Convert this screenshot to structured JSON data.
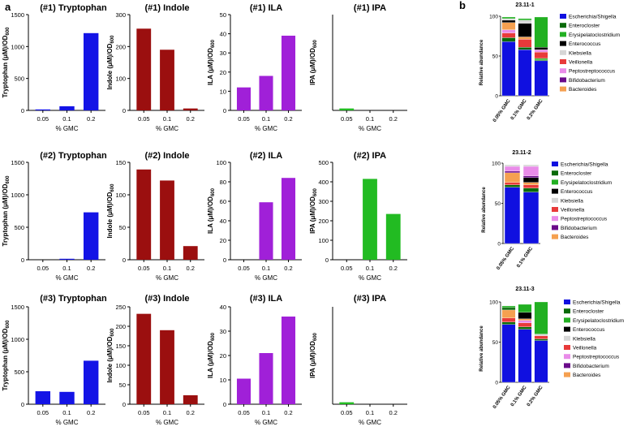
{
  "figure": {
    "panel_labels": [
      "a",
      "b"
    ]
  },
  "colors": {
    "tryptophan": "#1414e6",
    "indole": "#9b0f0f",
    "ila": "#a020d8",
    "ipa": "#22bb22",
    "Escherichia/Shigella": "#1010e0",
    "Enterocloster": "#0a6a0a",
    "Erysipelatoclostridium": "#22b022",
    "Enterococcus": "#000000",
    "Klebsiella": "#d6d6d6",
    "Veillonella": "#e83a3a",
    "Peptostreptococcus": "#e98ce9",
    "Bifidobacterium": "#6a0a8a",
    "Bacteroides": "#f5a050"
  },
  "chart_data": [
    {
      "type": "bar",
      "panel": "a",
      "title": "(#1) Tryptophan",
      "series_key": "tryptophan",
      "categories": [
        "0.05",
        "0.1",
        "0.2"
      ],
      "values": [
        3,
        65,
        1210
      ],
      "ylim": [
        0,
        1500
      ],
      "yticks": [
        0,
        500,
        1000,
        1500
      ],
      "xlabel": "% GMC",
      "ylabel_main": "Tryptophan (μM)/OD",
      "ylabel_sub": "600"
    },
    {
      "type": "bar",
      "panel": "a",
      "title": "(#1) Indole",
      "series_key": "indole",
      "categories": [
        "0.05",
        "0.1",
        "0.2"
      ],
      "values": [
        256,
        190,
        6
      ],
      "ylim": [
        0,
        300
      ],
      "yticks": [
        0,
        100,
        200,
        300
      ],
      "xlabel": "% GMC",
      "ylabel_main": "Indole (μM)/OD",
      "ylabel_sub": "600"
    },
    {
      "type": "bar",
      "panel": "a",
      "title": "(#1) ILA",
      "series_key": "ila",
      "categories": [
        "0.05",
        "0.1",
        "0.2"
      ],
      "values": [
        12,
        18,
        39
      ],
      "ylim": [
        0,
        50
      ],
      "yticks": [
        0,
        10,
        20,
        30,
        40,
        50
      ],
      "xlabel": "% GMC",
      "ylabel_main": "ILA (μM)/OD",
      "ylabel_sub": "600"
    },
    {
      "type": "bar",
      "panel": "a",
      "title": "(#1) IPA",
      "series_key": "ipa",
      "categories": [
        "0.05",
        "0.1",
        "0.2"
      ],
      "values": [
        0.02,
        0,
        0
      ],
      "ylim": [
        0,
        1
      ],
      "yticks": [],
      "xlabel": "% GMC",
      "ylabel_main": "IPA (μM)/OD",
      "ylabel_sub": "600"
    },
    {
      "type": "bar",
      "panel": "a",
      "title": "(#2) Tryptophan",
      "series_key": "tryptophan",
      "categories": [
        "0.05",
        "0.1",
        "0.2"
      ],
      "values": [
        0,
        5,
        730
      ],
      "ylim": [
        0,
        1500
      ],
      "yticks": [
        0,
        500,
        1000,
        1500
      ],
      "xlabel": "% GMC",
      "ylabel_main": "Tryptophan (μM)/OD",
      "ylabel_sub": "600"
    },
    {
      "type": "bar",
      "panel": "a",
      "title": "(#2) Indole",
      "series_key": "indole",
      "categories": [
        "0.05",
        "0.1",
        "0.2"
      ],
      "values": [
        139,
        122,
        21
      ],
      "ylim": [
        0,
        150
      ],
      "yticks": [
        0,
        50,
        100,
        150
      ],
      "xlabel": "% GMC",
      "ylabel_main": "Indole (μM)/OD",
      "ylabel_sub": "600"
    },
    {
      "type": "bar",
      "panel": "a",
      "title": "(#2) ILA",
      "series_key": "ila",
      "categories": [
        "0.05",
        "0.1",
        "0.2"
      ],
      "values": [
        0,
        59,
        84
      ],
      "ylim": [
        0,
        100
      ],
      "yticks": [
        0,
        20,
        40,
        60,
        80,
        100
      ],
      "xlabel": "% GMC",
      "ylabel_main": "ILA (μM)/OD",
      "ylabel_sub": "600"
    },
    {
      "type": "bar",
      "panel": "a",
      "title": "(#2) IPA",
      "series_key": "ipa",
      "categories": [
        "0.05",
        "0.1",
        "0.2"
      ],
      "values": [
        0,
        415,
        235
      ],
      "ylim": [
        0,
        500
      ],
      "yticks": [
        0,
        100,
        200,
        300,
        400,
        500
      ],
      "xlabel": "% GMC",
      "ylabel_main": "IPA (μM)/OD",
      "ylabel_sub": "600"
    },
    {
      "type": "bar",
      "panel": "a",
      "title": "(#3) Tryptophan",
      "series_key": "tryptophan",
      "categories": [
        "0.05",
        "0.1",
        "0.2"
      ],
      "values": [
        200,
        190,
        670
      ],
      "ylim": [
        0,
        1500
      ],
      "yticks": [
        0,
        500,
        1000,
        1500
      ],
      "xlabel": "% GMC",
      "ylabel_main": "Tryptophan (μM)/OD",
      "ylabel_sub": "600"
    },
    {
      "type": "bar",
      "panel": "a",
      "title": "(#3) Indole",
      "series_key": "indole",
      "categories": [
        "0.05",
        "0.1",
        "0.2"
      ],
      "values": [
        232,
        190,
        23
      ],
      "ylim": [
        0,
        250
      ],
      "yticks": [
        0,
        50,
        100,
        150,
        200,
        250
      ],
      "xlabel": "% GMC",
      "ylabel_main": "Indole (μM)/OD",
      "ylabel_sub": "600"
    },
    {
      "type": "bar",
      "panel": "a",
      "title": "(#3) ILA",
      "series_key": "ila",
      "categories": [
        "0.05",
        "0.1",
        "0.2"
      ],
      "values": [
        10.5,
        21,
        36
      ],
      "ylim": [
        0,
        40
      ],
      "yticks": [
        0,
        10,
        20,
        30,
        40
      ],
      "xlabel": "% GMC",
      "ylabel_main": "ILA (μM)/OD",
      "ylabel_sub": "600"
    },
    {
      "type": "bar",
      "panel": "a",
      "title": "(#3) IPA",
      "series_key": "ipa",
      "categories": [
        "0.05",
        "0.1",
        "0.2"
      ],
      "values": [
        0.02,
        0,
        0
      ],
      "ylim": [
        0,
        1
      ],
      "yticks": [],
      "xlabel": "% GMC",
      "ylabel_main": "IPA (μM)/OD",
      "ylabel_sub": "600"
    },
    {
      "type": "stacked_bar",
      "panel": "b",
      "title": "23.11-1",
      "categories": [
        "0.05% GMC",
        "0.1% GMC",
        "0.2% GMC"
      ],
      "ylabel": "Relative abundance",
      "ylim": [
        0,
        100
      ],
      "yticks": [
        0,
        50,
        100
      ],
      "legend": [
        "Escherichia/Shigella",
        "Enterocloster",
        "Erysipelatoclostridium",
        "Enterococcus",
        "Klebsiella",
        "Veillonella",
        "Peptostreptococcus",
        "Bifidobacterium",
        "Bacteroides"
      ],
      "series": [
        {
          "name": "Escherichia/Shigella",
          "values": [
            68,
            58,
            44
          ]
        },
        {
          "name": "Enterocloster",
          "values": [
            5,
            3,
            1
          ]
        },
        {
          "name": "Erysipelatoclostridium",
          "values": [
            0,
            0,
            2
          ]
        },
        {
          "name": "Enterococcus",
          "values": [
            0,
            0,
            0
          ]
        },
        {
          "name": "Klebsiella",
          "values": [
            0,
            0,
            0
          ]
        },
        {
          "name": "Veillonella",
          "values": [
            6,
            10,
            8
          ]
        },
        {
          "name": "Peptostreptococcus",
          "values": [
            4,
            0,
            3
          ]
        },
        {
          "name": "Bifidobacterium",
          "values": [
            0,
            0,
            0
          ]
        },
        {
          "name": "Bacteroides",
          "values": [
            9,
            3,
            0
          ]
        },
        {
          "name": "Enterococcus",
          "values": [
            3,
            17,
            3
          ]
        },
        {
          "name": "Klebsiella",
          "values": [
            2,
            4,
            0
          ]
        },
        {
          "name": "Erysipelatoclostridium",
          "values": [
            2,
            2,
            38
          ]
        }
      ]
    },
    {
      "type": "stacked_bar",
      "panel": "b",
      "title": "23.11-2",
      "categories": [
        "0.05% GMC",
        "0.1% GMC"
      ],
      "ylabel": "Relative abundance",
      "ylim": [
        0,
        100
      ],
      "yticks": [
        0,
        50,
        100
      ],
      "legend": [
        "Escherichia/Shigella",
        "Enterocloster",
        "Erysipelatoclostridium",
        "Enterococcus",
        "Klebsiella",
        "Veillonella",
        "Peptostreptococcus",
        "Bifidobacterium",
        "Bacteroides"
      ],
      "series": [
        {
          "name": "Escherichia/Shigella",
          "values": [
            70,
            64
          ]
        },
        {
          "name": "Enterocloster",
          "values": [
            3,
            5
          ]
        },
        {
          "name": "Erysipelatoclostridium",
          "values": [
            0,
            0
          ]
        },
        {
          "name": "Veillonella",
          "values": [
            3,
            4
          ]
        },
        {
          "name": "Bacteroides",
          "values": [
            12,
            3
          ]
        },
        {
          "name": "Enterococcus",
          "values": [
            0,
            6
          ]
        },
        {
          "name": "Bifidobacterium",
          "values": [
            2,
            2
          ]
        },
        {
          "name": "Peptostreptococcus",
          "values": [
            6,
            12
          ]
        },
        {
          "name": "Klebsiella",
          "values": [
            2,
            2
          ]
        }
      ]
    },
    {
      "type": "stacked_bar",
      "panel": "b",
      "title": "23.11-3",
      "categories": [
        "0.05% GMC",
        "0.1% GMC",
        "0.2% GMC"
      ],
      "ylabel": "Relative abundance",
      "ylim": [
        0,
        100
      ],
      "yticks": [
        0,
        50,
        100
      ],
      "legend": [
        "Escherichia/Shigella",
        "Enterocloster",
        "Erysipelatoclostridium",
        "Enterococcus",
        "Klebsiella",
        "Veillonella",
        "Peptostreptococcus",
        "Bifidobacterium",
        "Bacteroides"
      ],
      "series": [
        {
          "name": "Escherichia/Shigella",
          "values": [
            72,
            66,
            52
          ]
        },
        {
          "name": "Enterocloster",
          "values": [
            3,
            3,
            2
          ]
        },
        {
          "name": "Veillonella",
          "values": [
            5,
            5,
            4
          ]
        },
        {
          "name": "Peptostreptococcus",
          "values": [
            0,
            3,
            0
          ]
        },
        {
          "name": "Bacteroides",
          "values": [
            10,
            2,
            0
          ]
        },
        {
          "name": "Enterococcus",
          "values": [
            0,
            8,
            0
          ]
        },
        {
          "name": "Klebsiella",
          "values": [
            0,
            0,
            2
          ]
        },
        {
          "name": "Enterocloster",
          "values": [
            3,
            0,
            0
          ]
        },
        {
          "name": "Erysipelatoclostridium",
          "values": [
            2,
            10,
            40
          ]
        }
      ]
    }
  ]
}
